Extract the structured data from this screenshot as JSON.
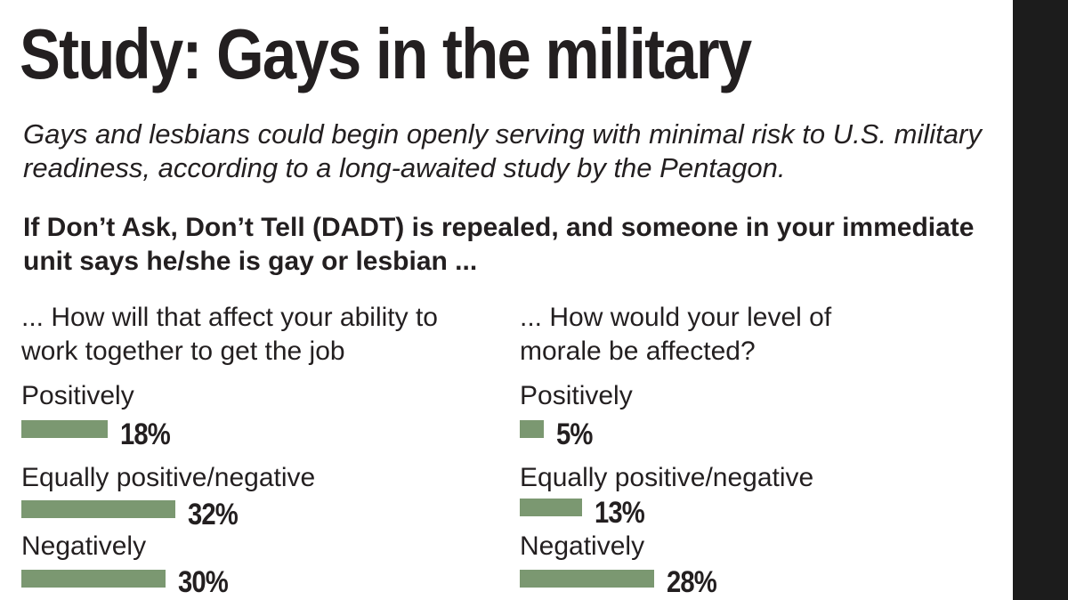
{
  "title": "Study: Gays in the military",
  "subtitle": "Gays and lesbians could begin openly serving with minimal risk to U.S. military readiness, according to a long-awaited study by the Pentagon.",
  "question": "If Don’t Ask, Don’t Tell (DADT) is repealed, and someone in your immediate unit says he/she is gay or lesbian ...",
  "chart_data": [
    {
      "type": "bar",
      "orientation": "horizontal",
      "title": "... How will that affect your ability to work together to get the job",
      "categories": [
        "Positively",
        "Equally positive/negative",
        "Negatively"
      ],
      "values": [
        18,
        32,
        30
      ],
      "value_labels": [
        "18%",
        "32%",
        "30%"
      ],
      "unit": "%",
      "bar_color": "#7b9871"
    },
    {
      "type": "bar",
      "orientation": "horizontal",
      "title": "... How would your level of morale be affected?",
      "categories": [
        "Positively",
        "Equally positive/negative",
        "Negatively"
      ],
      "values": [
        5,
        13,
        28
      ],
      "value_labels": [
        "5%",
        "13%",
        "28%"
      ],
      "unit": "%",
      "bar_color": "#7b9871"
    }
  ]
}
